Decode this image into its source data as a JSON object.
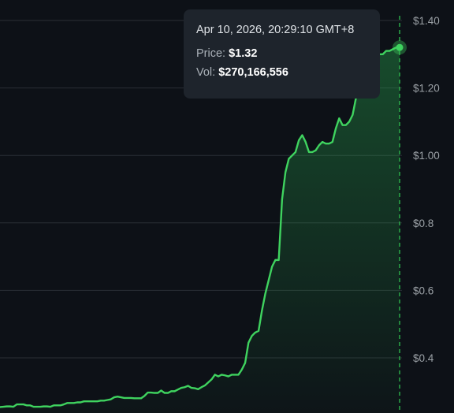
{
  "tooltip": {
    "date": "Apr 10, 2026, 20:29:10 GMT+8",
    "price_label": "Price:",
    "price_value": "$1.32",
    "vol_label": "Vol:",
    "vol_value": "$270,166,556"
  },
  "colors": {
    "background": "#0d1117",
    "line": "#3fd35f",
    "grid": "#2a2f36",
    "crosshair": "#2fbf4f",
    "tooltip_bg": "#1e242c"
  },
  "chart_data": {
    "type": "area",
    "title": "",
    "xlabel": "",
    "ylabel": "",
    "ylim": [
      0.25,
      1.41
    ],
    "y_ticks": [
      0.4,
      0.6,
      0.8,
      1.0,
      1.2,
      1.4
    ],
    "y_tick_labels": [
      "$0.4",
      "$0.6",
      "$0.8",
      "$1.00",
      "$1.20",
      "$1.40"
    ],
    "grid": true,
    "y_axis_position": "right",
    "highlight_index": 119,
    "series": [
      {
        "values": [
          0.254,
          0.255,
          0.256,
          0.256,
          0.255,
          0.262,
          0.262,
          0.262,
          0.259,
          0.259,
          0.255,
          0.255,
          0.255,
          0.256,
          0.256,
          0.255,
          0.259,
          0.259,
          0.259,
          0.262,
          0.266,
          0.266,
          0.266,
          0.268,
          0.268,
          0.271,
          0.271,
          0.271,
          0.271,
          0.271,
          0.273,
          0.273,
          0.275,
          0.277,
          0.283,
          0.285,
          0.283,
          0.281,
          0.281,
          0.281,
          0.28,
          0.28,
          0.28,
          0.287,
          0.297,
          0.297,
          0.296,
          0.296,
          0.303,
          0.296,
          0.296,
          0.301,
          0.301,
          0.306,
          0.311,
          0.313,
          0.317,
          0.311,
          0.31,
          0.307,
          0.313,
          0.318,
          0.327,
          0.336,
          0.35,
          0.345,
          0.35,
          0.348,
          0.345,
          0.35,
          0.35,
          0.35,
          0.365,
          0.385,
          0.445,
          0.465,
          0.475,
          0.48,
          0.54,
          0.59,
          0.63,
          0.67,
          0.69,
          0.69,
          0.87,
          0.95,
          0.99,
          1.0,
          1.01,
          1.045,
          1.06,
          1.04,
          1.01,
          1.01,
          1.015,
          1.03,
          1.04,
          1.035,
          1.035,
          1.04,
          1.08,
          1.11,
          1.09,
          1.09,
          1.1,
          1.12,
          1.17,
          1.22,
          1.24,
          1.26,
          1.27,
          1.28,
          1.29,
          1.3,
          1.3,
          1.31,
          1.31,
          1.315,
          1.32,
          1.32
        ]
      }
    ]
  }
}
